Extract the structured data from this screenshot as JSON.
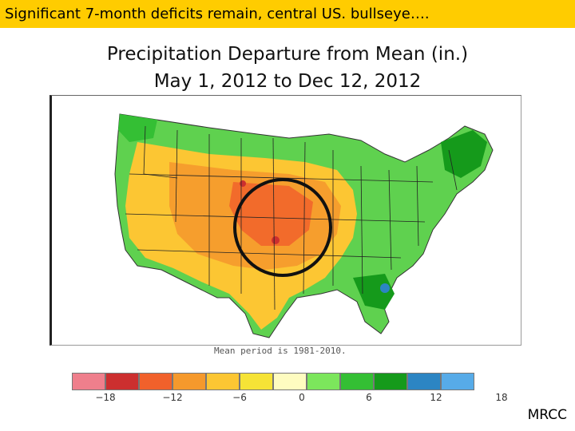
{
  "banner": {
    "text": "Significant 7-month deficits remain, central US. bullseye…."
  },
  "title": {
    "line1": "Precipitation Departure from Mean (in.)",
    "line2": "May 1, 2012 to Dec 12, 2012"
  },
  "map": {
    "note": "Mean period is 1981-2010."
  },
  "legend": {
    "colors": [
      "#ef7f8c",
      "#cc2f2f",
      "#f1612b",
      "#f5992c",
      "#fcc633",
      "#f6e336",
      "#fefcc0",
      "#7ce65c",
      "#34bf34",
      "#159a1b",
      "#2c85c3",
      "#57abe8"
    ],
    "ticks": [
      "−18",
      "−12",
      "−6",
      "0",
      "6",
      "12",
      "18"
    ]
  },
  "footer": {
    "text": "MRCC"
  }
}
